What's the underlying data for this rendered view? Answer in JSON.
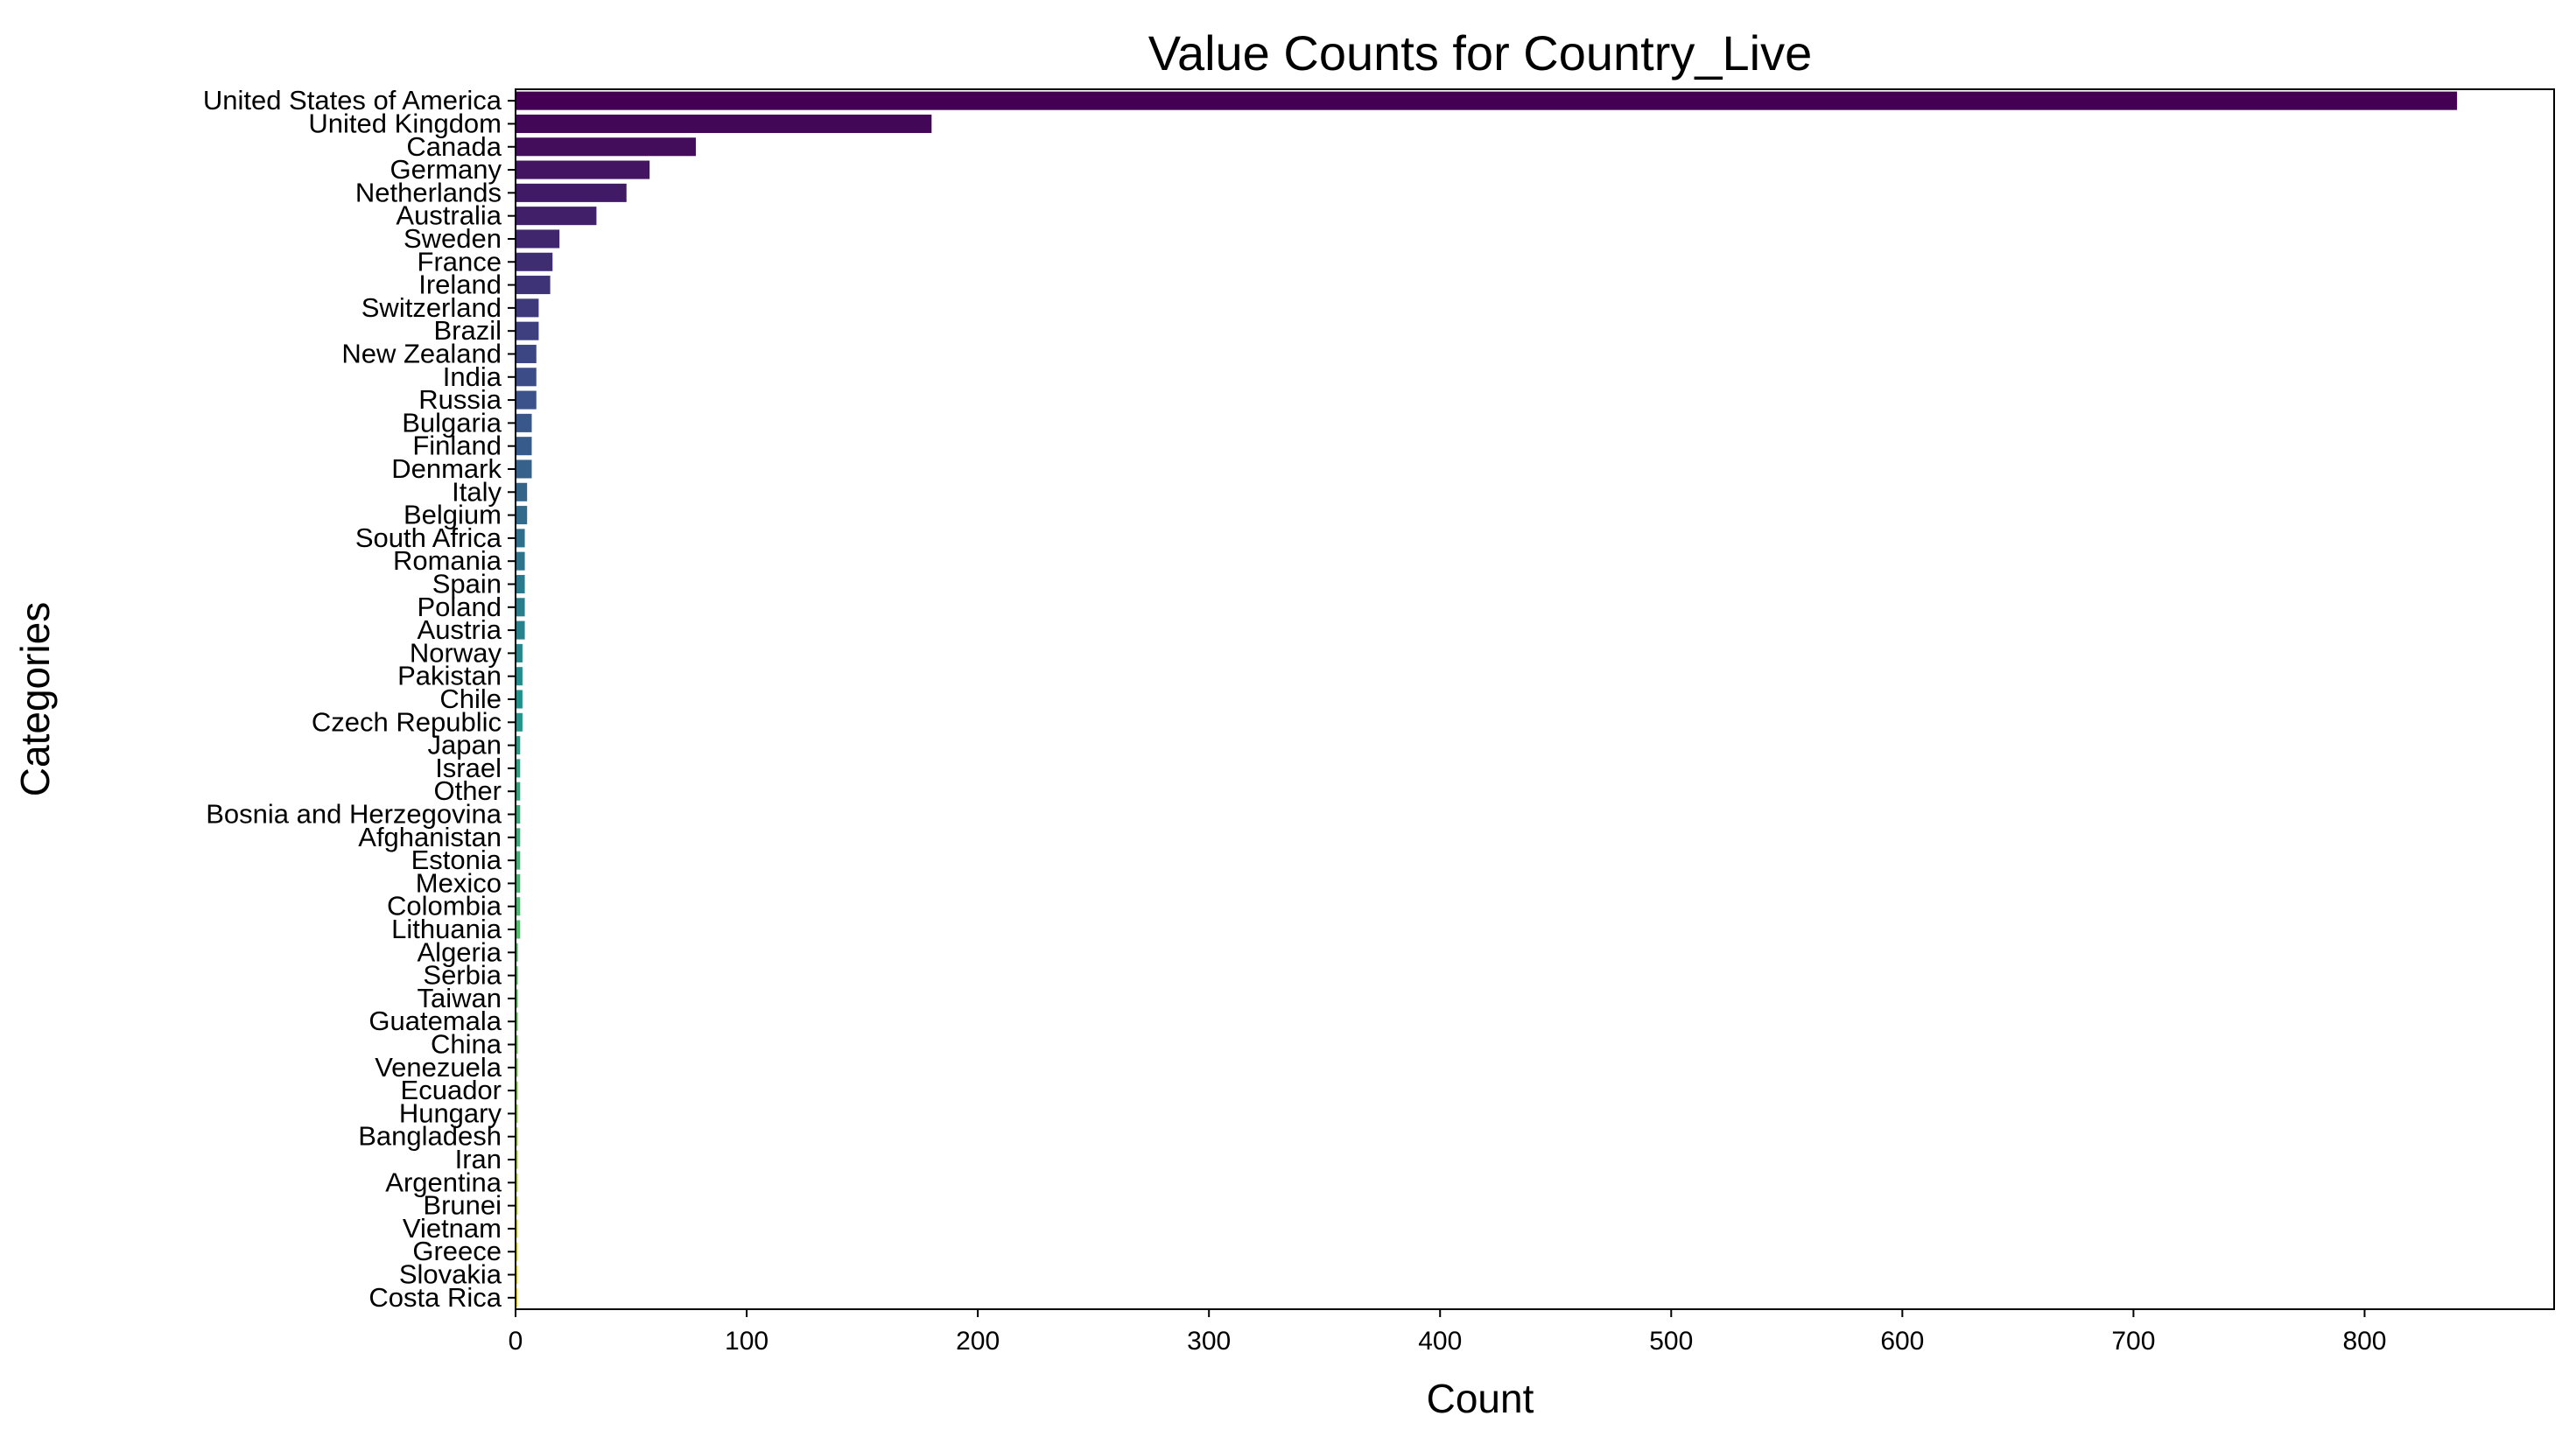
{
  "chart_data": {
    "type": "bar",
    "orientation": "horizontal",
    "title": "Value Counts for Country_Live",
    "xlabel": "Count",
    "ylabel": "Categories",
    "xlim": [
      0,
      882
    ],
    "xticks": [
      0,
      100,
      200,
      300,
      400,
      500,
      600,
      700,
      800
    ],
    "grid": false,
    "legend": "none",
    "palette": "viridis",
    "categories": [
      "United States of America",
      "United Kingdom",
      "Canada",
      "Germany",
      "Netherlands",
      "Australia",
      "Sweden",
      "France",
      "Ireland",
      "Switzerland",
      "Brazil",
      "New Zealand",
      "India",
      "Russia",
      "Bulgaria",
      "Finland",
      "Denmark",
      "Italy",
      "Belgium",
      "South Africa",
      "Romania",
      "Spain",
      "Poland",
      "Austria",
      "Norway",
      "Pakistan",
      "Chile",
      "Czech Republic",
      "Japan",
      "Israel",
      "Other",
      "Bosnia and Herzegovina",
      "Afghanistan",
      "Estonia",
      "Mexico",
      "Colombia",
      "Lithuania",
      "Algeria",
      "Serbia",
      "Taiwan",
      "Guatemala",
      "China",
      "Venezuela",
      "Ecuador",
      "Hungary",
      "Bangladesh",
      "Iran",
      "Argentina",
      "Brunei",
      "Vietnam",
      "Greece",
      "Slovakia",
      "Costa Rica"
    ],
    "values": [
      840,
      180,
      78,
      58,
      48,
      35,
      19,
      16,
      15,
      10,
      10,
      9,
      9,
      9,
      7,
      7,
      7,
      5,
      5,
      4,
      4,
      4,
      4,
      4,
      3,
      3,
      3,
      3,
      2,
      2,
      2,
      2,
      2,
      2,
      2,
      2,
      2,
      1,
      1,
      1,
      1,
      1,
      1,
      1,
      1,
      1,
      1,
      1,
      1,
      1,
      1,
      1,
      1
    ]
  }
}
